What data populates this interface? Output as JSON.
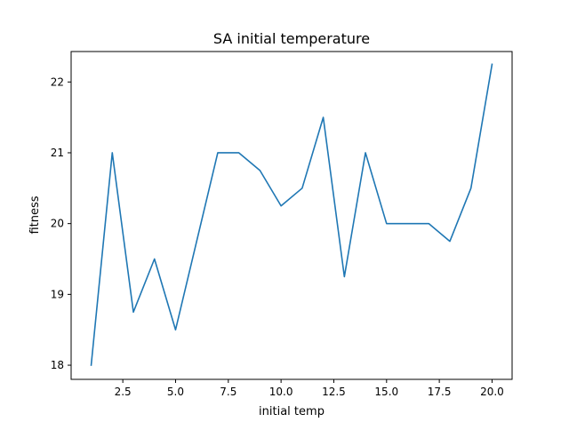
{
  "chart_data": {
    "type": "line",
    "title": "SA initial temperature",
    "xlabel": "initial temp",
    "ylabel": "fitness",
    "xlim": [
      0.05,
      20.95
    ],
    "ylim": [
      17.8,
      22.43
    ],
    "x_ticks": [
      2.5,
      5.0,
      7.5,
      10.0,
      12.5,
      15.0,
      17.5,
      20.0
    ],
    "x_tick_labels": [
      "2.5",
      "5.0",
      "7.5",
      "10.0",
      "12.5",
      "15.0",
      "17.5",
      "20.0"
    ],
    "y_ticks": [
      18,
      19,
      20,
      21,
      22
    ],
    "y_tick_labels": [
      "18",
      "19",
      "20",
      "21",
      "22"
    ],
    "grid": false,
    "legend": false,
    "series": [
      {
        "color": "#1f77b4",
        "x": [
          1,
          2,
          3,
          4,
          5,
          6,
          7,
          8,
          9,
          10,
          11,
          12,
          13,
          14,
          15,
          16,
          17,
          18,
          19,
          20
        ],
        "y": [
          18.0,
          21.0,
          18.75,
          19.5,
          18.5,
          19.75,
          21.0,
          21.0,
          20.75,
          20.25,
          20.5,
          21.5,
          19.25,
          21.0,
          20.0,
          20.0,
          20.0,
          19.75,
          20.5,
          22.25
        ]
      }
    ]
  }
}
